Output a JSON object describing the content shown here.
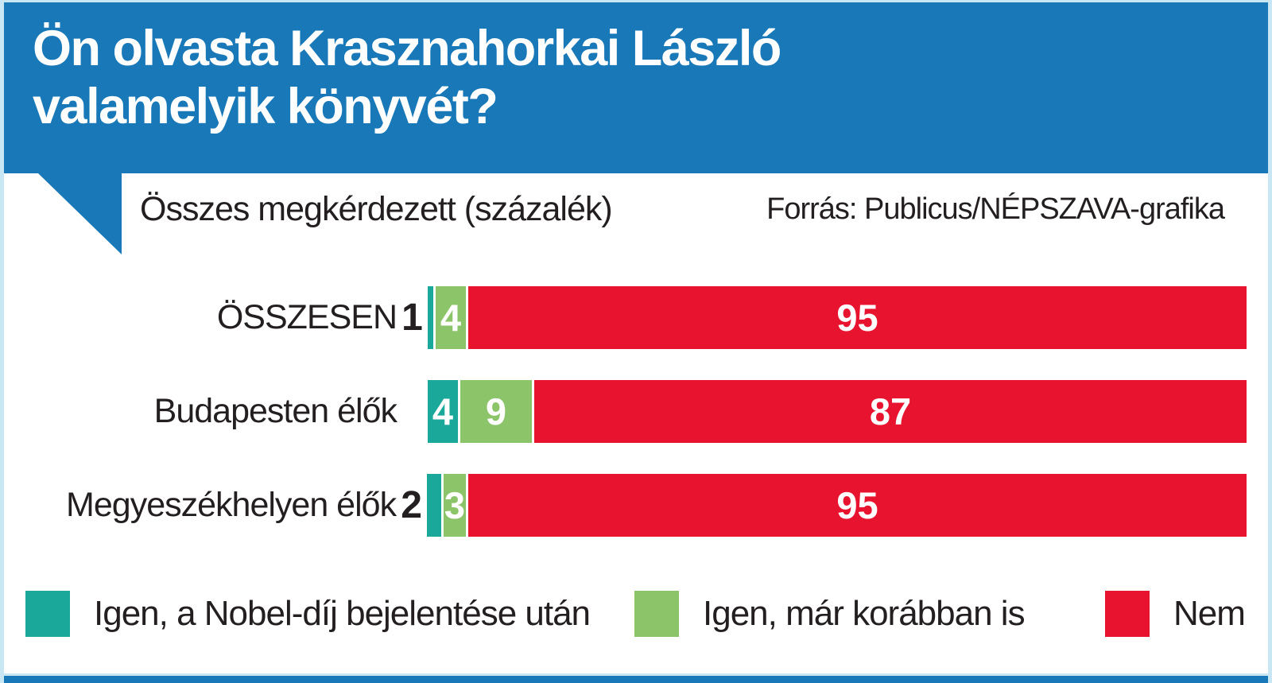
{
  "header": {
    "title_line1": "Ön olvasta Krasznahorkai László",
    "title_line2": "valamelyik könyvét?"
  },
  "subtitle": "Összes megkérdezett (százalék)",
  "source": "Forrás: Publicus/NÉPSZAVA-grafika",
  "colors": {
    "header_blue": "#1878b8",
    "frame_light_blue": "#c9e6f5",
    "teal": "#1aa89a",
    "green": "#8cc46a",
    "red": "#e8142f",
    "text_dark": "#231f20",
    "bar_value_white": "#ffffff"
  },
  "chart_data": {
    "type": "bar",
    "orientation": "horizontal",
    "stacked": true,
    "unit": "percent",
    "title": "Ön olvasta Krasznahorkai László valamelyik könyvét?",
    "subtitle": "Összes megkérdezett (százalék)",
    "categories": [
      "ÖSSZESEN",
      "Budapesten élők",
      "Megyeszékhelyen élők"
    ],
    "series": [
      {
        "name": "Igen, a Nobel-díj bejelentése után",
        "color": "#1aa89a",
        "values": [
          1,
          4,
          2
        ]
      },
      {
        "name": "Igen, már korábban is",
        "color": "#8cc46a",
        "values": [
          4,
          9,
          3
        ]
      },
      {
        "name": "Nem",
        "color": "#e8142f",
        "values": [
          95,
          87,
          95
        ]
      }
    ],
    "value_label_positions": [
      [
        "outside",
        "inside",
        "inside"
      ],
      [
        "inside",
        "inside",
        "inside"
      ],
      [
        "outside",
        "inside",
        "inside"
      ]
    ],
    "xlim": [
      0,
      100
    ],
    "grid": false,
    "legend_position": "bottom"
  },
  "legend": {
    "items": [
      {
        "label": "Igen, a Nobel-díj bejelentése után",
        "color": "#1aa89a"
      },
      {
        "label": "Igen, már korábban is",
        "color": "#8cc46a"
      },
      {
        "label": "Nem",
        "color": "#e8142f"
      }
    ]
  }
}
